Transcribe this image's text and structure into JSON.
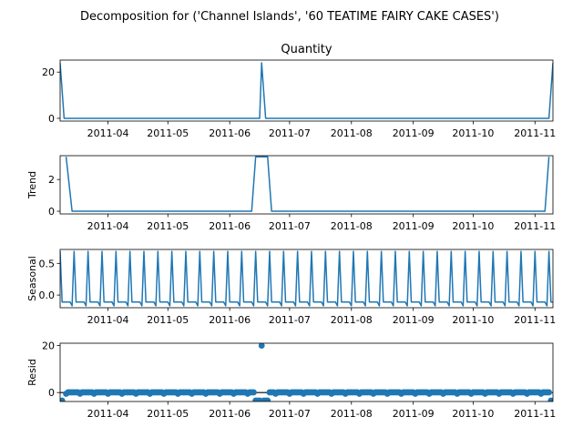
{
  "chart_data": {
    "type": "line",
    "title": "Decomposition for ('Channel Islands', '60 TEATIME FAIRY CAKE CASES')",
    "x_range": [
      "2011-03-08",
      "2011-11-10"
    ],
    "x_tick_labels": [
      "2011-04",
      "2011-05",
      "2011-06",
      "2011-07",
      "2011-08",
      "2011-09",
      "2011-10",
      "2011-11"
    ],
    "x_tick_dates": [
      "2011-04-01",
      "2011-05-01",
      "2011-06-01",
      "2011-07-01",
      "2011-08-01",
      "2011-09-01",
      "2011-10-01",
      "2011-11-01"
    ],
    "panels": [
      {
        "name": "observed",
        "title": "Quantity",
        "ylabel": "",
        "kind": "line",
        "ylim": [
          -1.2,
          25.2
        ],
        "yticks": [
          0,
          20
        ],
        "ytick_labels": [
          "0",
          "20"
        ],
        "points": [
          [
            "2011-03-08",
            24
          ],
          [
            "2011-03-10",
            0
          ],
          [
            "2011-06-16",
            0
          ],
          [
            "2011-06-17",
            24
          ],
          [
            "2011-06-19",
            0
          ],
          [
            "2011-11-08",
            0
          ],
          [
            "2011-11-10",
            24
          ]
        ]
      },
      {
        "name": "trend",
        "title": "",
        "ylabel": "Trend",
        "kind": "line",
        "ylim": [
          -0.17,
          3.5
        ],
        "yticks": [
          0,
          2
        ],
        "ytick_labels": [
          "0",
          "2"
        ],
        "points": [
          [
            "2011-03-11",
            3.43
          ],
          [
            "2011-03-14",
            0
          ],
          [
            "2011-06-12",
            0
          ],
          [
            "2011-06-14",
            3.43
          ],
          [
            "2011-06-20",
            3.43
          ],
          [
            "2011-06-22",
            0
          ],
          [
            "2011-11-06",
            0
          ],
          [
            "2011-11-08",
            3.43
          ]
        ]
      },
      {
        "name": "seasonal",
        "title": "",
        "ylabel": "Seasonal",
        "kind": "seasonal",
        "ylim": [
          -0.2,
          0.72
        ],
        "yticks": [
          0.0,
          0.5
        ],
        "ytick_labels": [
          "0.0",
          "0.5"
        ],
        "period_days": 7,
        "cycle_values": [
          0.69,
          -0.11,
          -0.11,
          -0.11,
          -0.11,
          -0.11,
          -0.17
        ]
      },
      {
        "name": "resid",
        "title": "",
        "ylabel": "Resid",
        "kind": "resid",
        "ylim": [
          -3.8,
          21.0
        ],
        "yticks": [
          0,
          20
        ],
        "ytick_labels": [
          "0",
          "20"
        ],
        "outliers": [
          [
            "2011-03-09",
            -3.4
          ],
          [
            "2011-06-14",
            -3.4
          ],
          [
            "2011-06-15",
            -3.4
          ],
          [
            "2011-06-16",
            -3.4
          ],
          [
            "2011-06-17",
            20.0
          ],
          [
            "2011-06-18",
            -3.4
          ],
          [
            "2011-06-19",
            -3.4
          ],
          [
            "2011-06-20",
            -3.4
          ],
          [
            "2011-11-09",
            -3.4
          ]
        ],
        "baseline_start": "2011-03-11",
        "baseline_end": "2011-11-08"
      }
    ]
  }
}
